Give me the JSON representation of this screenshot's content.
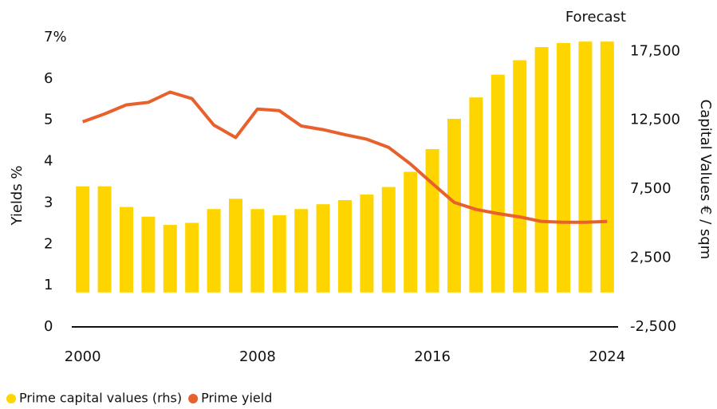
{
  "chart_data": {
    "type": "bar_line",
    "annotation": "Forecast",
    "y_label": "Yields %",
    "y2_label": "Capital Values € / sqm",
    "categories": [
      "2000",
      null,
      null,
      null,
      null,
      null,
      null,
      null,
      "2008",
      null,
      null,
      null,
      null,
      null,
      null,
      null,
      "2016",
      null,
      null,
      null,
      null,
      null,
      null,
      null,
      "2024"
    ],
    "series": [
      {
        "name": "Prime capital values (rhs)",
        "type": "bar",
        "axis": "y2",
        "color": "#FFD500",
        "values": [
          7700,
          7700,
          6200,
          5500,
          4900,
          5050,
          6050,
          6800,
          6050,
          5600,
          6050,
          6400,
          6700,
          7100,
          7650,
          8750,
          10400,
          12600,
          14150,
          15800,
          16850,
          17800,
          18100,
          18200,
          18200
        ]
      },
      {
        "name": "Prime yield",
        "type": "line",
        "axis": "y",
        "color": "#E8612C",
        "values": [
          4.96,
          5.15,
          5.37,
          5.43,
          5.68,
          5.52,
          4.88,
          4.58,
          5.27,
          5.23,
          4.86,
          4.77,
          4.65,
          4.54,
          4.34,
          3.94,
          3.47,
          3.01,
          2.84,
          2.74,
          2.66,
          2.55,
          2.53,
          2.53,
          2.55
        ]
      }
    ],
    "ylim": [
      0,
      7
    ],
    "yticks": [
      0,
      1,
      2,
      3,
      4,
      5,
      6,
      {
        "value": 7,
        "label": "7%"
      }
    ],
    "y2lim": [
      -2500,
      18500
    ],
    "y2ticks": [
      {
        "value": -2500,
        "label": "-2,500"
      },
      {
        "value": 2500,
        "label": "2,500"
      },
      {
        "value": 7500,
        "label": "7,500"
      },
      {
        "value": 12500,
        "label": "12,500"
      },
      {
        "value": 17500,
        "label": "17,500"
      }
    ],
    "legend": "bottom-left"
  }
}
